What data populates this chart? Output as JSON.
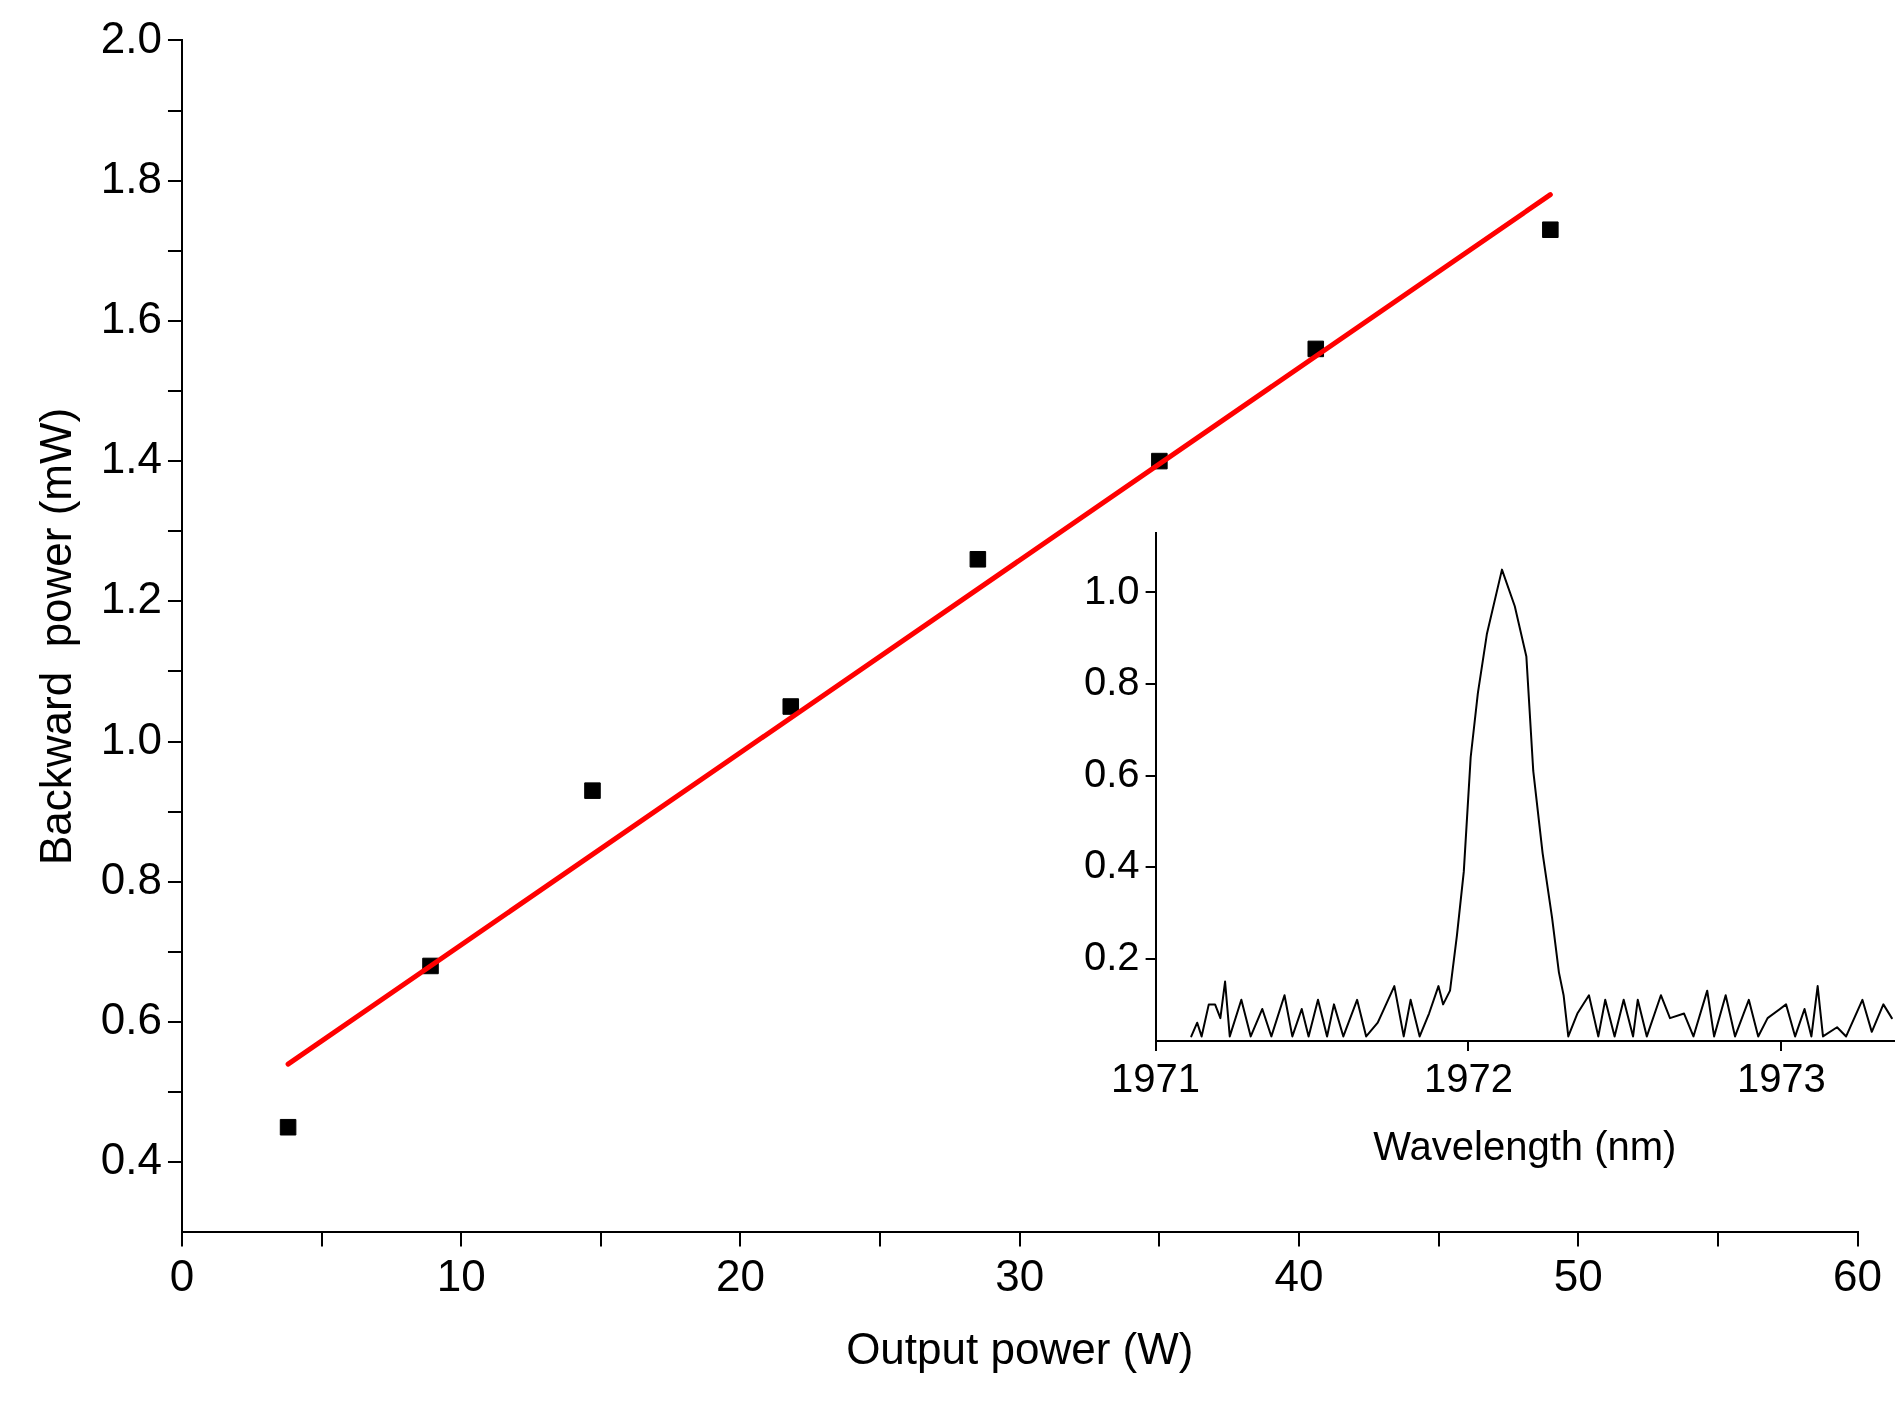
{
  "chart_data": [
    {
      "type": "scatter",
      "xlabel": "Output power (W)",
      "ylabel": "Backward  power (mW)",
      "xlim": [
        0,
        60
      ],
      "ylim": [
        0.3,
        2.0
      ],
      "xticks": [
        0,
        {
          "value": 5,
          "label": null
        },
        10,
        {
          "value": 15,
          "label": null
        },
        20,
        {
          "value": 25,
          "label": null
        },
        30,
        {
          "value": 35,
          "label": null
        },
        40,
        {
          "value": 45,
          "label": null
        },
        50,
        {
          "value": 55,
          "label": null
        },
        60
      ],
      "yticks": [
        0.4,
        {
          "value": 0.5,
          "label": null
        },
        0.6,
        {
          "value": 0.7,
          "label": null
        },
        0.8,
        {
          "value": 0.9,
          "label": null
        },
        {
          "value": 1.0,
          "label": "1.0"
        },
        {
          "value": 1.1,
          "label": null
        },
        1.2,
        {
          "value": 1.3,
          "label": null
        },
        1.4,
        {
          "value": 1.5,
          "label": null
        },
        1.6,
        {
          "value": 1.7,
          "label": null
        },
        1.8,
        {
          "value": 1.9,
          "label": null
        },
        {
          "value": 2.0,
          "label": "2.0"
        }
      ],
      "series": [
        {
          "marker": "square",
          "color": "#000000",
          "x": [
            3.8,
            8.9,
            14.7,
            21.8,
            28.5,
            35.0,
            40.6,
            49.0
          ],
          "values": [
            0.45,
            0.68,
            0.93,
            1.05,
            1.26,
            1.4,
            1.56,
            1.73
          ]
        },
        {
          "type": "line",
          "color": "#ff0000",
          "x": [
            3.8,
            49.0
          ],
          "values": [
            0.54,
            1.78
          ]
        }
      ]
    },
    {
      "type": "line",
      "xlabel": "Wavelength (nm)",
      "xlim": [
        1971,
        1973.36
      ],
      "ylim": [
        0.02,
        1.13
      ],
      "xticks": [
        1971,
        1972,
        1973
      ],
      "yticks": [
        0.2,
        0.4,
        0.6,
        0.8,
        {
          "value": 1.0,
          "label": "1.0"
        }
      ],
      "marker": "none",
      "series": [
        {
          "color": "#000000",
          "x": [
            1971.114,
            1971.133,
            1971.147,
            1971.17,
            1971.19,
            1971.207,
            1971.222,
            1971.237,
            1971.274,
            1971.304,
            1971.341,
            1971.37,
            1971.412,
            1971.437,
            1971.467,
            1971.489,
            1971.519,
            1971.548,
            1971.57,
            1971.6,
            1971.644,
            1971.673,
            1971.71,
            1971.763,
            1971.793,
            1971.815,
            1971.844,
            1971.874,
            1971.904,
            1971.919,
            1971.941,
            1971.963,
            1971.985,
            1972.007,
            1972.03,
            1972.059,
            1972.107,
            1972.148,
            1972.185,
            1972.207,
            1972.237,
            1972.267,
            1972.289,
            1972.304,
            1972.319,
            1972.348,
            1972.385,
            1972.415,
            1972.437,
            1972.467,
            1972.496,
            1972.526,
            1972.541,
            1972.57,
            1972.615,
            1972.644,
            1972.689,
            1972.719,
            1972.763,
            1972.785,
            1972.822,
            1972.852,
            1972.896,
            1972.926,
            1972.956,
            1973.015,
            1973.044,
            1973.074,
            1973.096,
            1973.116,
            1973.133,
            1973.178,
            1973.207,
            1973.259,
            1973.289,
            1973.326,
            1973.353
          ],
          "values": [
            0.03,
            0.06,
            0.03,
            0.1,
            0.1,
            0.07,
            0.15,
            0.03,
            0.11,
            0.03,
            0.09,
            0.03,
            0.12,
            0.03,
            0.09,
            0.03,
            0.11,
            0.03,
            0.1,
            0.03,
            0.11,
            0.03,
            0.06,
            0.14,
            0.03,
            0.11,
            0.03,
            0.08,
            0.14,
            0.1,
            0.13,
            0.25,
            0.39,
            0.64,
            0.78,
            0.91,
            1.05,
            0.97,
            0.86,
            0.61,
            0.43,
            0.29,
            0.17,
            0.12,
            0.03,
            0.08,
            0.12,
            0.03,
            0.11,
            0.03,
            0.11,
            0.03,
            0.11,
            0.03,
            0.12,
            0.07,
            0.08,
            0.03,
            0.13,
            0.03,
            0.12,
            0.03,
            0.11,
            0.03,
            0.07,
            0.1,
            0.03,
            0.09,
            0.03,
            0.14,
            0.03,
            0.05,
            0.03,
            0.11,
            0.04,
            0.1,
            0.07
          ]
        }
      ]
    }
  ]
}
